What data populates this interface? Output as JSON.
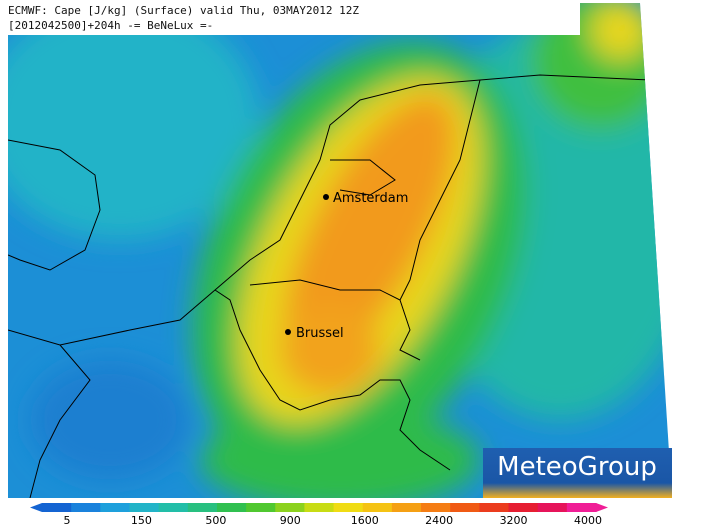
{
  "header": {
    "line1": "ECMWF: Cape [J/kg] (Surface) valid Thu, 03MAY2012 12Z",
    "line2": "[2012042500]+204h -= BeNeLux =-"
  },
  "cities": [
    {
      "label": "Amsterdam"
    },
    {
      "label": "Brussel"
    }
  ],
  "colorbar": {
    "ticks": [
      5,
      150,
      500,
      900,
      1600,
      2400,
      3200,
      4000
    ]
  },
  "logo": {
    "text": "MeteoGroup"
  }
}
